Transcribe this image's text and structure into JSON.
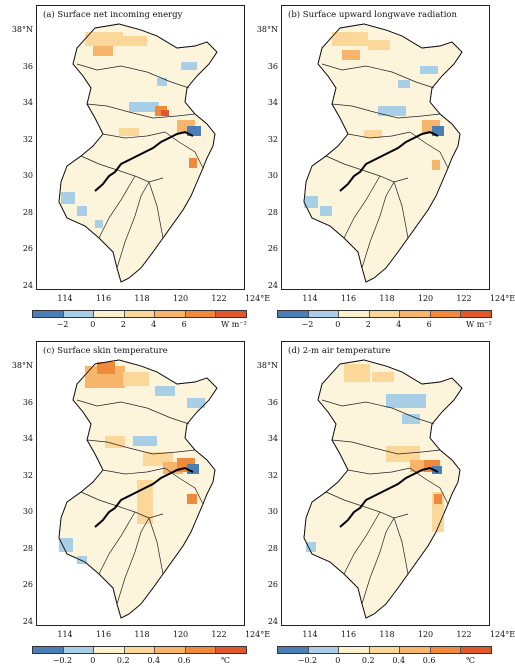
{
  "lat_labels": [
    "38°N",
    "36",
    "34",
    "32",
    "30",
    "28",
    "26",
    "24"
  ],
  "lon_labels": [
    "114",
    "116",
    "118",
    "120",
    "122",
    "124°E"
  ],
  "colors": {
    "neg2": "#4a7fb6",
    "neg1": "#a8cfe6",
    "pos1": "#fdf2d0",
    "pos2": "#fbd79a",
    "pos3": "#f6b56a",
    "pos4": "#ef8a3d",
    "pos5": "#e2572c",
    "land": "#fdf4dc"
  },
  "panels": [
    {
      "title": "(a) Surface net incoming energy",
      "cbar_labels": [
        "−2",
        "0",
        "2",
        "4",
        "6"
      ],
      "unit": "W m⁻²"
    },
    {
      "title": "(b) Surface upward longwave radiation",
      "cbar_labels": [
        "−2",
        "0",
        "2",
        "4",
        "6"
      ],
      "unit": "W m⁻²"
    },
    {
      "title": "(c) Surface skin temperature",
      "cbar_labels": [
        "−0.2",
        "0",
        "0.2",
        "0.4",
        "0.6"
      ],
      "unit": "℃"
    },
    {
      "title": "(d) 2-m air temperature",
      "cbar_labels": [
        "−0.2",
        "0",
        "0.2",
        "0.4",
        "0.6"
      ],
      "unit": "℃"
    }
  ]
}
